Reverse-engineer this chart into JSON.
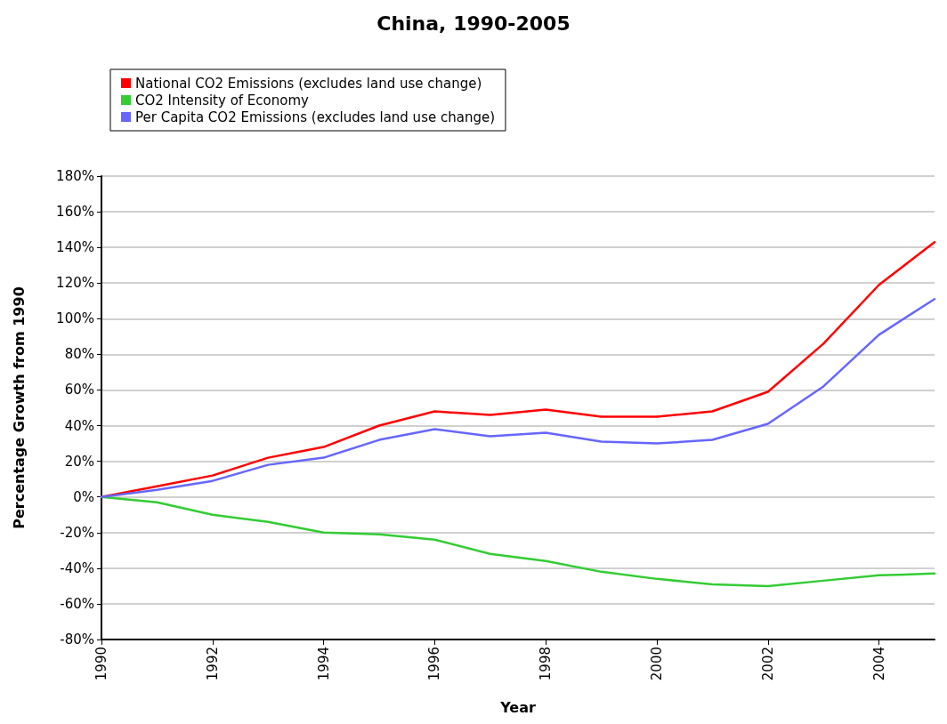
{
  "chart_data": {
    "type": "line",
    "title": "China, 1990-2005",
    "xlabel": "Year",
    "ylabel": "Percentage Growth from 1990",
    "x": [
      1990,
      1991,
      1992,
      1993,
      1994,
      1995,
      1996,
      1997,
      1998,
      1999,
      2000,
      2001,
      2002,
      2003,
      2004,
      2005
    ],
    "series": [
      {
        "name": "National CO2 Emissions (excludes land use change)",
        "color": "#ff0000",
        "values": [
          0,
          6,
          12,
          22,
          28,
          40,
          48,
          46,
          49,
          45,
          45,
          48,
          59,
          86,
          119,
          143
        ]
      },
      {
        "name": "CO2 Intensity of Economy",
        "color": "#33cc33",
        "values": [
          0,
          -3,
          -10,
          -14,
          -20,
          -21,
          -24,
          -32,
          -36,
          -42,
          -46,
          -49,
          -50,
          -47,
          -44,
          -43
        ]
      },
      {
        "name": "Per Capita CO2 Emissions (excludes land use change)",
        "color": "#6666ff",
        "values": [
          0,
          4,
          9,
          18,
          22,
          32,
          38,
          34,
          36,
          31,
          30,
          32,
          41,
          62,
          91,
          111
        ]
      }
    ],
    "xlim": [
      1990,
      2005
    ],
    "xticks": [
      1990,
      1992,
      1994,
      1996,
      1998,
      2000,
      2002,
      2004
    ],
    "ylim": [
      -80,
      180
    ],
    "yticks": [
      {
        "value": -80,
        "label": "-80%"
      },
      {
        "value": -60,
        "label": "-60%"
      },
      {
        "value": -40,
        "label": "-40%"
      },
      {
        "value": -20,
        "label": "-20%"
      },
      {
        "value": 0,
        "label": "0%"
      },
      {
        "value": 20,
        "label": "20%"
      },
      {
        "value": 40,
        "label": "40%"
      },
      {
        "value": 60,
        "label": "60%"
      },
      {
        "value": 80,
        "label": "80%"
      },
      {
        "value": 100,
        "label": "100%"
      },
      {
        "value": 120,
        "label": "120%"
      },
      {
        "value": 140,
        "label": "140%"
      },
      {
        "value": 160,
        "label": "160%"
      },
      {
        "value": 180,
        "label": "180%"
      }
    ],
    "grid": "y",
    "legend": "top left",
    "marker": "none",
    "line_style": "solid"
  }
}
